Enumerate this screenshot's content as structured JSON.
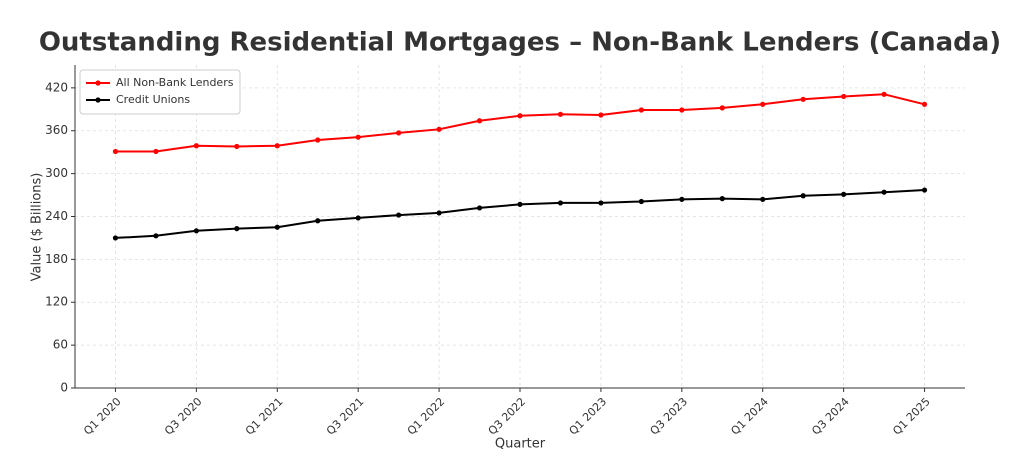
{
  "chart_data": {
    "type": "line",
    "title": "Outstanding Residential Mortgages – Non-Bank Lenders (Canada)",
    "x_label": "Quarter",
    "y_label": "Value ($ Billions)",
    "categories": [
      "Q1 2020",
      null,
      "Q3 2020",
      null,
      "Q1 2021",
      null,
      "Q3 2021",
      null,
      "Q1 2022",
      null,
      "Q3 2022",
      null,
      "Q1 2023",
      null,
      "Q3 2023",
      null,
      "Q1 2024",
      null,
      "Q3 2024",
      null,
      "Q1 2025"
    ],
    "series": [
      {
        "name": "All Non-Bank Lenders",
        "color": "#ff0000",
        "values": [
          331,
          331,
          339,
          338,
          339,
          347,
          351,
          357,
          362,
          374,
          381,
          383,
          382,
          389,
          389,
          392,
          397,
          404,
          408,
          411,
          397
        ]
      },
      {
        "name": "Credit Unions",
        "color": "#000000",
        "values": [
          210,
          213,
          220,
          223,
          225,
          234,
          238,
          242,
          245,
          252,
          257,
          259,
          259,
          261,
          264,
          265,
          264,
          269,
          271,
          274,
          277
        ]
      }
    ],
    "ylim": [
      0,
      452
    ],
    "yticks": [
      0,
      60,
      120,
      180,
      240,
      300,
      360,
      420
    ],
    "grid": true,
    "legend": "upper-left"
  }
}
